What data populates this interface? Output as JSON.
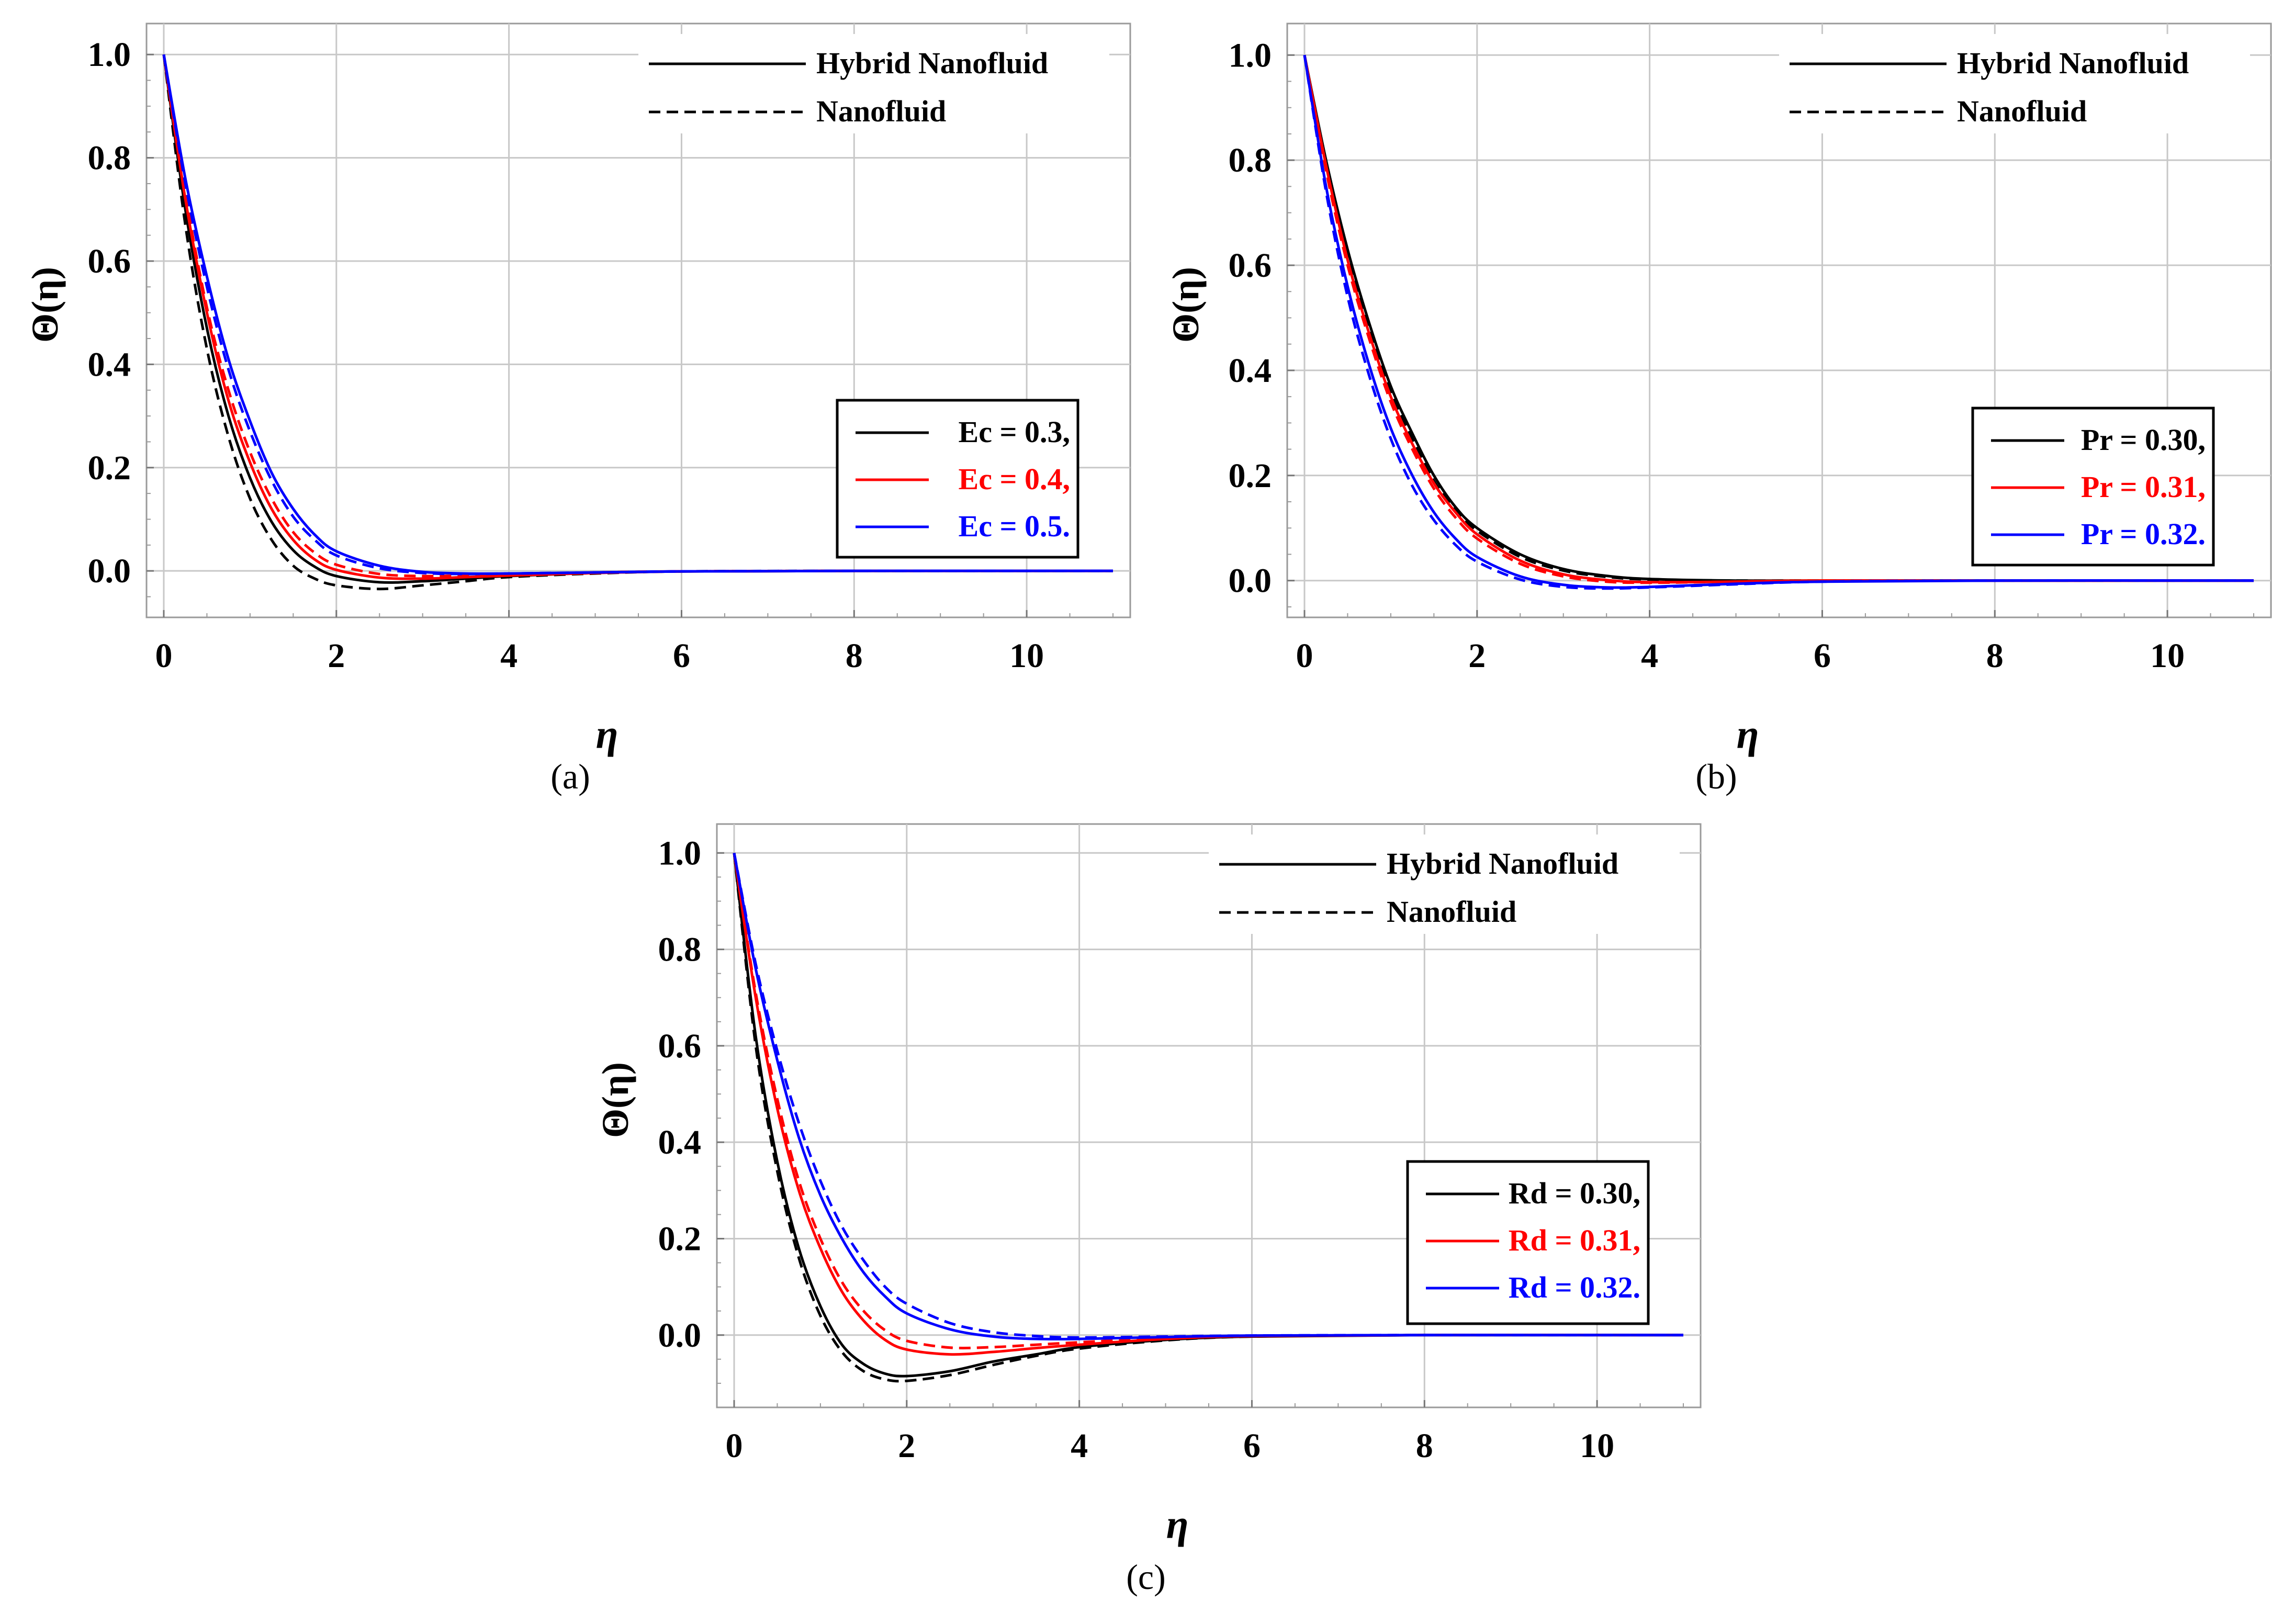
{
  "chart_data": [
    {
      "type": "line",
      "panel_label": "a",
      "xlabel": "η",
      "ylabel": "Θ(η)",
      "xlim": [
        -0.2,
        11.2
      ],
      "ylim": [
        -0.09,
        1.06
      ],
      "xticks": [
        "0",
        "2",
        "4",
        "6",
        "8",
        "10"
      ],
      "yticks": [
        "0.0",
        "0.2",
        "0.4",
        "0.6",
        "0.8",
        "1.0"
      ],
      "style_legend": [
        {
          "label": "Hybrid Nanofluid",
          "dash": "solid"
        },
        {
          "label": "Nanofluid",
          "dash": "dashed"
        }
      ],
      "param_legend": [
        {
          "label": "Ec = 0.3,",
          "color": "#000000"
        },
        {
          "label": "Ec = 0.4,",
          "color": "#ff0000"
        },
        {
          "label": "Ec = 0.5.",
          "color": "#0000ff"
        }
      ],
      "series": [
        {
          "name": "Ec = 0.3, Hybrid Nanofluid",
          "color": "#000000",
          "dash": "solid",
          "x": [
            0,
            0.25,
            0.5,
            0.75,
            1,
            1.25,
            1.5,
            1.75,
            2,
            2.5,
            3,
            3.5,
            4,
            5,
            6,
            8,
            11
          ],
          "y": [
            1.0,
            0.7,
            0.47,
            0.3,
            0.18,
            0.095,
            0.04,
            0.008,
            -0.01,
            -0.022,
            -0.02,
            -0.015,
            -0.01,
            -0.004,
            -0.001,
            0,
            0
          ]
        },
        {
          "name": "Ec = 0.3, Nanofluid",
          "color": "#000000",
          "dash": "dashed",
          "x": [
            0,
            0.25,
            0.5,
            0.75,
            1,
            1.25,
            1.5,
            1.75,
            2,
            2.5,
            3,
            3.5,
            4,
            5,
            6,
            8,
            11
          ],
          "y": [
            1.0,
            0.67,
            0.43,
            0.26,
            0.14,
            0.06,
            0.01,
            -0.015,
            -0.028,
            -0.035,
            -0.028,
            -0.02,
            -0.012,
            -0.005,
            -0.001,
            0,
            0
          ]
        },
        {
          "name": "Ec = 0.4, Hybrid Nanofluid",
          "color": "#ff0000",
          "dash": "solid",
          "x": [
            0,
            0.25,
            0.5,
            0.75,
            1,
            1.25,
            1.5,
            1.75,
            2,
            2.5,
            3,
            3.5,
            4,
            5,
            6,
            8,
            11
          ],
          "y": [
            1.0,
            0.72,
            0.5,
            0.33,
            0.21,
            0.12,
            0.06,
            0.022,
            0.002,
            -0.013,
            -0.015,
            -0.012,
            -0.009,
            -0.004,
            -0.001,
            0,
            0
          ]
        },
        {
          "name": "Ec = 0.4, Nanofluid",
          "color": "#ff0000",
          "dash": "dashed",
          "x": [
            0,
            0.25,
            0.5,
            0.75,
            1,
            1.25,
            1.5,
            1.75,
            2,
            2.5,
            3,
            3.5,
            4,
            5,
            6,
            8,
            11
          ],
          "y": [
            1.0,
            0.73,
            0.51,
            0.35,
            0.23,
            0.14,
            0.075,
            0.035,
            0.012,
            -0.006,
            -0.01,
            -0.009,
            -0.007,
            -0.003,
            -0.001,
            0,
            0
          ]
        },
        {
          "name": "Ec = 0.5, Hybrid Nanofluid",
          "color": "#0000ff",
          "dash": "solid",
          "x": [
            0,
            0.25,
            0.5,
            0.75,
            1,
            1.25,
            1.5,
            1.75,
            2,
            2.5,
            3,
            3.5,
            4,
            5,
            6,
            8,
            11
          ],
          "y": [
            1.0,
            0.76,
            0.57,
            0.41,
            0.29,
            0.19,
            0.12,
            0.07,
            0.038,
            0.01,
            -0.002,
            -0.005,
            -0.005,
            -0.003,
            -0.001,
            0,
            0
          ]
        },
        {
          "name": "Ec = 0.5, Nanofluid",
          "color": "#0000ff",
          "dash": "dashed",
          "x": [
            0,
            0.25,
            0.5,
            0.75,
            1,
            1.25,
            1.5,
            1.75,
            2,
            2.5,
            3,
            3.5,
            4,
            5,
            6,
            8,
            11
          ],
          "y": [
            1.0,
            0.75,
            0.55,
            0.39,
            0.27,
            0.175,
            0.105,
            0.06,
            0.03,
            0.005,
            -0.004,
            -0.006,
            -0.005,
            -0.003,
            -0.001,
            0,
            0
          ]
        }
      ]
    },
    {
      "type": "line",
      "panel_label": "b",
      "xlabel": "η",
      "ylabel": "Θ(η)",
      "xlim": [
        -0.2,
        11.2
      ],
      "ylim": [
        -0.07,
        1.06
      ],
      "xticks": [
        "0",
        "2",
        "4",
        "6",
        "8",
        "10"
      ],
      "yticks": [
        "0.0",
        "0.2",
        "0.4",
        "0.6",
        "0.8",
        "1.0"
      ],
      "style_legend": [
        {
          "label": "Hybrid Nanofluid",
          "dash": "solid"
        },
        {
          "label": "Nanofluid",
          "dash": "dashed"
        }
      ],
      "param_legend": [
        {
          "label": "Pr = 0.30,",
          "color": "#000000"
        },
        {
          "label": "Pr = 0.31,",
          "color": "#ff0000"
        },
        {
          "label": "Pr = 0.32.",
          "color": "#0000ff"
        }
      ],
      "series": [
        {
          "name": "Pr = 0.30, Hybrid Nanofluid",
          "color": "#000000",
          "dash": "solid",
          "x": [
            0,
            0.25,
            0.5,
            0.75,
            1,
            1.25,
            1.5,
            1.75,
            2,
            2.5,
            3,
            3.5,
            4,
            5,
            6,
            8,
            11
          ],
          "y": [
            1.0,
            0.8,
            0.63,
            0.49,
            0.37,
            0.28,
            0.2,
            0.14,
            0.1,
            0.05,
            0.022,
            0.009,
            0.003,
            0,
            0,
            0,
            0
          ]
        },
        {
          "name": "Pr = 0.30, Nanofluid",
          "color": "#000000",
          "dash": "dashed",
          "x": [
            0,
            0.25,
            0.5,
            0.75,
            1,
            1.25,
            1.5,
            1.75,
            2,
            2.5,
            3,
            3.5,
            4,
            5,
            6,
            8,
            11
          ],
          "y": [
            1.0,
            0.79,
            0.62,
            0.48,
            0.36,
            0.27,
            0.19,
            0.135,
            0.095,
            0.045,
            0.019,
            0.007,
            0.002,
            0,
            0,
            0,
            0
          ]
        },
        {
          "name": "Pr = 0.31, Hybrid Nanofluid",
          "color": "#ff0000",
          "dash": "solid",
          "x": [
            0,
            0.25,
            0.5,
            0.75,
            1,
            1.25,
            1.5,
            1.75,
            2,
            2.5,
            3,
            3.5,
            4,
            5,
            6,
            8,
            11
          ],
          "y": [
            1.0,
            0.79,
            0.61,
            0.47,
            0.35,
            0.26,
            0.185,
            0.13,
            0.088,
            0.038,
            0.012,
            0.001,
            -0.003,
            -0.002,
            0,
            0,
            0
          ]
        },
        {
          "name": "Pr = 0.31, Nanofluid",
          "color": "#ff0000",
          "dash": "dashed",
          "x": [
            0,
            0.25,
            0.5,
            0.75,
            1,
            1.25,
            1.5,
            1.75,
            2,
            2.5,
            3,
            3.5,
            4,
            5,
            6,
            8,
            11
          ],
          "y": [
            1.0,
            0.78,
            0.6,
            0.46,
            0.34,
            0.25,
            0.175,
            0.12,
            0.08,
            0.032,
            0.008,
            -0.002,
            -0.004,
            -0.002,
            0,
            0,
            0
          ]
        },
        {
          "name": "Pr = 0.32, Hybrid Nanofluid",
          "color": "#0000ff",
          "dash": "solid",
          "x": [
            0,
            0.25,
            0.5,
            0.75,
            1,
            1.25,
            1.5,
            1.75,
            2,
            2.5,
            3,
            3.5,
            4,
            5,
            6,
            8,
            11
          ],
          "y": [
            1.0,
            0.75,
            0.56,
            0.41,
            0.29,
            0.2,
            0.13,
            0.08,
            0.045,
            0.008,
            -0.008,
            -0.013,
            -0.012,
            -0.006,
            -0.002,
            0,
            0
          ]
        },
        {
          "name": "Pr = 0.32, Nanofluid",
          "color": "#0000ff",
          "dash": "dashed",
          "x": [
            0,
            0.25,
            0.5,
            0.75,
            1,
            1.25,
            1.5,
            1.75,
            2,
            2.5,
            3,
            3.5,
            4,
            5,
            6,
            8,
            11
          ],
          "y": [
            1.0,
            0.74,
            0.54,
            0.39,
            0.27,
            0.18,
            0.115,
            0.068,
            0.036,
            0.002,
            -0.012,
            -0.015,
            -0.013,
            -0.007,
            -0.002,
            0,
            0
          ]
        }
      ]
    },
    {
      "type": "line",
      "panel_label": "c",
      "xlabel": "η",
      "ylabel": "Θ(η)",
      "xlim": [
        -0.2,
        11.2
      ],
      "ylim": [
        -0.15,
        1.06
      ],
      "xticks": [
        "0",
        "2",
        "4",
        "6",
        "8",
        "10"
      ],
      "yticks": [
        "0.0",
        "0.2",
        "0.4",
        "0.6",
        "0.8",
        "1.0"
      ],
      "style_legend": [
        {
          "label": "Hybrid Nanofluid",
          "dash": "solid"
        },
        {
          "label": "Nanofluid",
          "dash": "dashed"
        }
      ],
      "param_legend": [
        {
          "label": "Rd = 0.30,",
          "color": "#000000"
        },
        {
          "label": "Rd = 0.31,",
          "color": "#ff0000"
        },
        {
          "label": "Rd = 0.32.",
          "color": "#0000ff"
        }
      ],
      "series": [
        {
          "name": "Rd = 0.30, Hybrid Nanofluid",
          "color": "#000000",
          "dash": "solid",
          "x": [
            0,
            0.25,
            0.5,
            0.75,
            1,
            1.25,
            1.5,
            1.75,
            2,
            2.5,
            3,
            3.5,
            4,
            5,
            6,
            8,
            11
          ],
          "y": [
            1.0,
            0.62,
            0.36,
            0.18,
            0.06,
            -0.02,
            -0.06,
            -0.08,
            -0.085,
            -0.075,
            -0.055,
            -0.04,
            -0.025,
            -0.01,
            -0.003,
            0,
            0
          ]
        },
        {
          "name": "Rd = 0.30, Nanofluid",
          "color": "#000000",
          "dash": "dashed",
          "x": [
            0,
            0.25,
            0.5,
            0.75,
            1,
            1.25,
            1.5,
            1.75,
            2,
            2.5,
            3,
            3.5,
            4,
            5,
            6,
            8,
            11
          ],
          "y": [
            1.0,
            0.6,
            0.34,
            0.16,
            0.04,
            -0.035,
            -0.075,
            -0.092,
            -0.095,
            -0.083,
            -0.062,
            -0.043,
            -0.028,
            -0.011,
            -0.003,
            0,
            0
          ]
        },
        {
          "name": "Rd = 0.31, Hybrid Nanofluid",
          "color": "#ff0000",
          "dash": "solid",
          "x": [
            0,
            0.25,
            0.5,
            0.75,
            1,
            1.25,
            1.5,
            1.75,
            2,
            2.5,
            3,
            3.5,
            4,
            5,
            6,
            8,
            11
          ],
          "y": [
            1.0,
            0.7,
            0.47,
            0.3,
            0.18,
            0.09,
            0.03,
            -0.01,
            -0.03,
            -0.04,
            -0.035,
            -0.027,
            -0.02,
            -0.008,
            -0.002,
            0,
            0
          ]
        },
        {
          "name": "Rd = 0.31, Nanofluid",
          "color": "#ff0000",
          "dash": "dashed",
          "x": [
            0,
            0.25,
            0.5,
            0.75,
            1,
            1.25,
            1.5,
            1.75,
            2,
            2.5,
            3,
            3.5,
            4,
            5,
            6,
            8,
            11
          ],
          "y": [
            1.0,
            0.71,
            0.49,
            0.32,
            0.2,
            0.11,
            0.05,
            0.01,
            -0.012,
            -0.026,
            -0.025,
            -0.02,
            -0.015,
            -0.006,
            -0.002,
            0,
            0
          ]
        },
        {
          "name": "Rd = 0.32, Hybrid Nanofluid",
          "color": "#0000ff",
          "dash": "solid",
          "x": [
            0,
            0.25,
            0.5,
            0.75,
            1,
            1.25,
            1.5,
            1.75,
            2,
            2.5,
            3,
            3.5,
            4,
            5,
            6,
            8,
            11
          ],
          "y": [
            1.0,
            0.76,
            0.57,
            0.41,
            0.29,
            0.2,
            0.13,
            0.08,
            0.045,
            0.012,
            -0.003,
            -0.008,
            -0.008,
            -0.004,
            -0.001,
            0,
            0
          ]
        },
        {
          "name": "Rd = 0.32, Nanofluid",
          "color": "#0000ff",
          "dash": "dashed",
          "x": [
            0,
            0.25,
            0.5,
            0.75,
            1,
            1.25,
            1.5,
            1.75,
            2,
            2.5,
            3,
            3.5,
            4,
            5,
            6,
            8,
            11
          ],
          "y": [
            1.0,
            0.77,
            0.59,
            0.44,
            0.32,
            0.225,
            0.155,
            0.1,
            0.065,
            0.025,
            0.006,
            -0.002,
            -0.005,
            -0.003,
            -0.001,
            0,
            0
          ]
        }
      ]
    }
  ],
  "captions": [
    "(a)",
    "(b)",
    "(c)"
  ]
}
